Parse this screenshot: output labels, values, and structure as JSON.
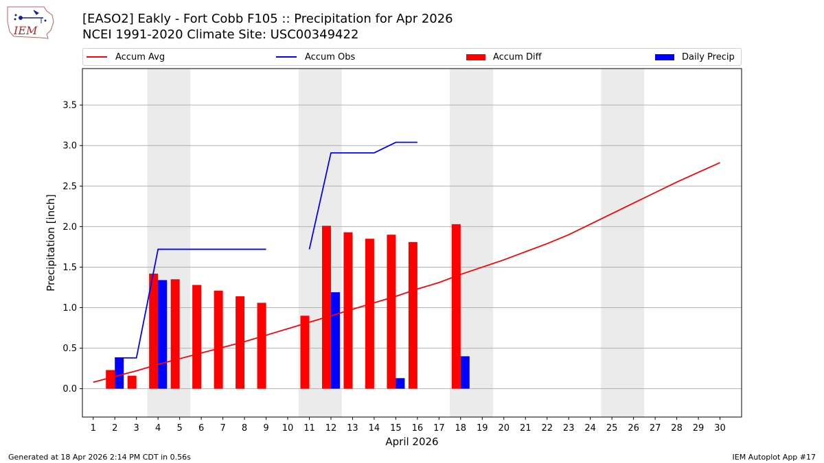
{
  "header": {
    "title": "[EASO2] Eakly - Fort Cobb F105 :: Precipitation for Apr 2026",
    "subtitle": "NCEI 1991-2020 Climate Site: USC00349422",
    "logo_text": "IEM"
  },
  "footer": {
    "left": "Generated at 18 Apr 2026 2:14 PM CDT in 0.56s",
    "right": "IEM Autoplot App #17"
  },
  "legend": [
    {
      "label": "Accum Avg",
      "kind": "line",
      "color": "#ff0000"
    },
    {
      "label": "Accum Obs",
      "kind": "line",
      "color": "#0000ff"
    },
    {
      "label": "Accum Diff",
      "kind": "bar",
      "color": "#ff0000"
    },
    {
      "label": "Daily Precip",
      "kind": "bar",
      "color": "#0000ff"
    }
  ],
  "colors": {
    "avg": "#ff0000",
    "obs": "#0000ff",
    "diff": "#ff0000",
    "daily": "#0000ff",
    "weekend": "#ebebeb",
    "grid": "#b0b0b0"
  },
  "chart_data": {
    "type": "bar",
    "title": "[EASO2] Eakly - Fort Cobb F105 :: Precipitation for Apr 2026",
    "xlabel": "April 2026",
    "ylabel": "Precipitation [inch]",
    "xlim": [
      0.5,
      31
    ],
    "ylim": [
      -0.35,
      3.95
    ],
    "days": [
      1,
      2,
      3,
      4,
      5,
      6,
      7,
      8,
      9,
      10,
      11,
      12,
      13,
      14,
      15,
      16,
      17,
      18,
      19,
      20,
      21,
      22,
      23,
      24,
      25,
      26,
      27,
      28,
      29,
      30
    ],
    "yticks": [
      "0.0",
      "0.5",
      "1.0",
      "1.5",
      "2.0",
      "2.5",
      "3.0",
      "3.5"
    ],
    "weekend_spans": [
      [
        3.5,
        5.5
      ],
      [
        10.5,
        12.5
      ],
      [
        17.5,
        19.5
      ],
      [
        24.5,
        26.5
      ]
    ],
    "series": [
      {
        "name": "Accum Avg",
        "type": "line",
        "x": [
          1,
          2,
          3,
          4,
          5,
          6,
          7,
          8,
          9,
          10,
          11,
          12,
          13,
          14,
          15,
          16,
          17,
          18,
          19,
          20,
          21,
          22,
          23,
          24,
          25,
          26,
          27,
          28,
          29,
          30
        ],
        "values": [
          0.08,
          0.15,
          0.22,
          0.3,
          0.37,
          0.44,
          0.51,
          0.58,
          0.66,
          0.74,
          0.82,
          0.9,
          0.98,
          1.06,
          1.14,
          1.23,
          1.31,
          1.41,
          1.5,
          1.59,
          1.69,
          1.79,
          1.9,
          2.03,
          2.16,
          2.29,
          2.42,
          2.55,
          2.67,
          2.79
        ]
      },
      {
        "name": "Accum Obs",
        "type": "line",
        "segments": [
          {
            "x": [
              2,
              3,
              4,
              5,
              6,
              7,
              8,
              9
            ],
            "values": [
              0.38,
              0.38,
              1.72,
              1.72,
              1.72,
              1.72,
              1.72,
              1.72
            ]
          },
          {
            "x": [
              11,
              12,
              13,
              14,
              15,
              16
            ],
            "values": [
              1.72,
              2.91,
              2.91,
              2.91,
              3.04,
              3.04
            ]
          }
        ]
      },
      {
        "name": "Accum Diff",
        "type": "bar",
        "x": [
          2,
          3,
          4,
          5,
          6,
          7,
          8,
          9,
          11,
          12,
          13,
          14,
          15,
          16,
          18
        ],
        "values": [
          0.23,
          0.16,
          1.42,
          1.35,
          1.28,
          1.21,
          1.14,
          1.06,
          0.9,
          2.01,
          1.93,
          1.85,
          1.9,
          1.81,
          2.03
        ]
      },
      {
        "name": "Daily Precip",
        "type": "bar",
        "x": [
          2,
          4,
          12,
          15,
          18
        ],
        "values": [
          0.38,
          1.34,
          1.19,
          0.13,
          0.4
        ]
      }
    ]
  }
}
